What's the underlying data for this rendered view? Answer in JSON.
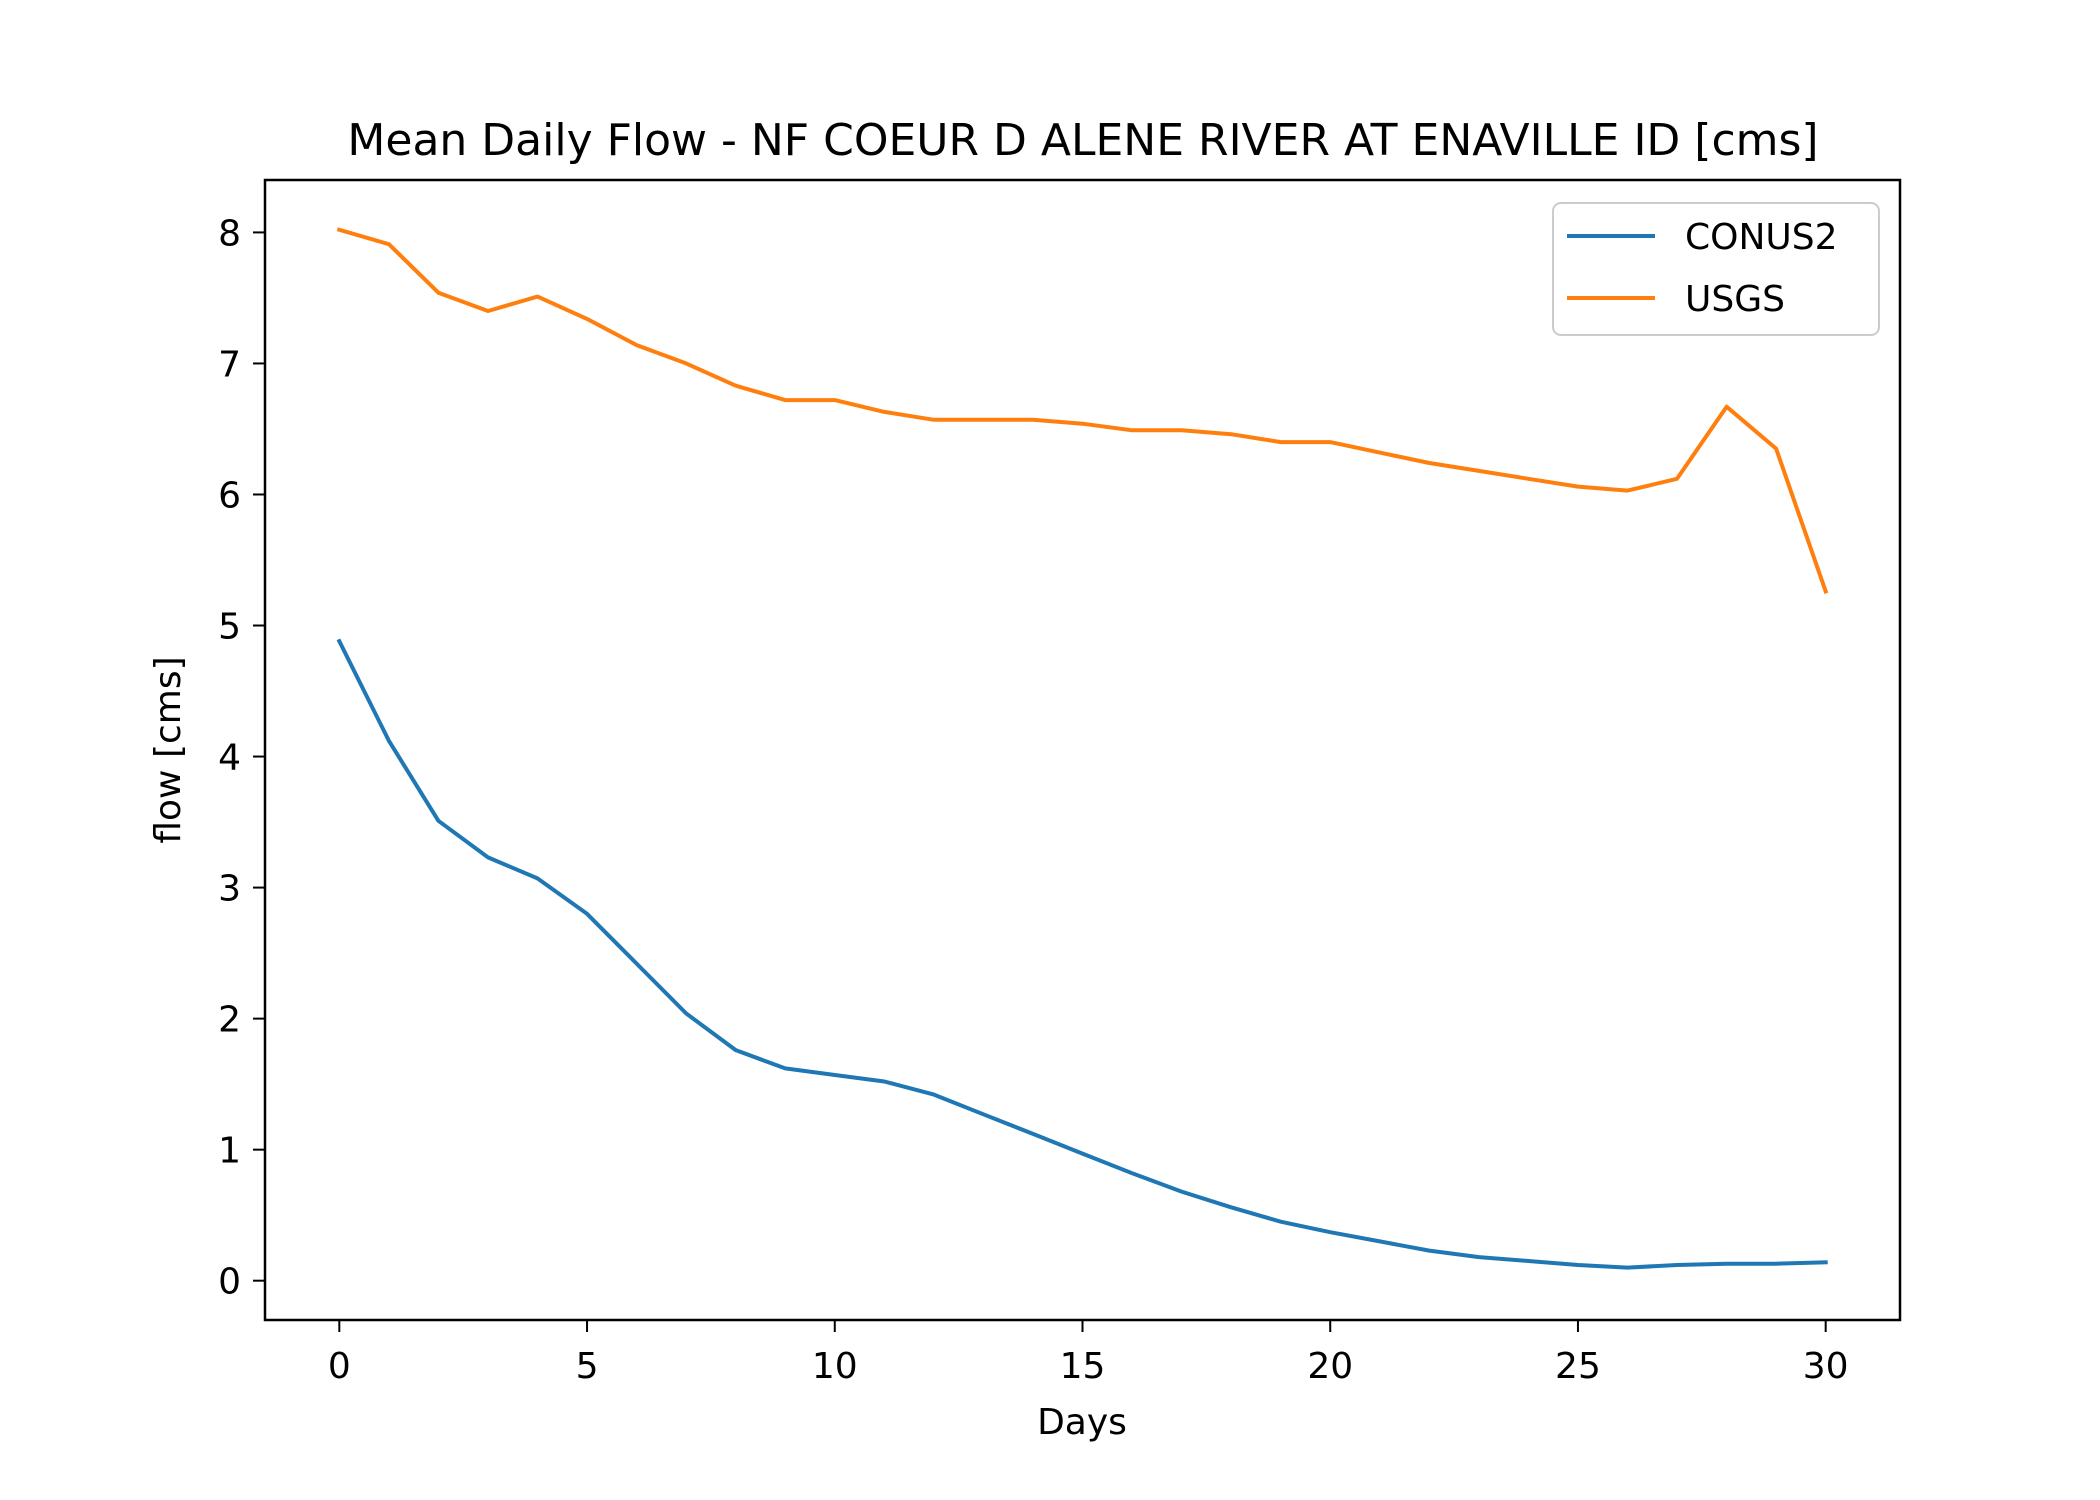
{
  "chart_data": {
    "type": "line",
    "title": "Mean Daily Flow - NF COEUR D ALENE RIVER AT ENAVILLE ID [cms]",
    "xlabel": "Days",
    "ylabel": "flow [cms]",
    "xlim": [
      -1.5,
      31.5
    ],
    "ylim": [
      -0.3,
      8.4
    ],
    "xticks": [
      0,
      5,
      10,
      15,
      20,
      25,
      30
    ],
    "yticks": [
      0,
      1,
      2,
      3,
      4,
      5,
      6,
      7,
      8
    ],
    "grid": false,
    "legend_position": "top-right",
    "x": [
      0,
      1,
      2,
      3,
      4,
      5,
      6,
      7,
      8,
      9,
      10,
      11,
      12,
      13,
      14,
      15,
      16,
      17,
      18,
      19,
      20,
      21,
      22,
      23,
      24,
      25,
      26,
      27,
      28,
      29,
      30
    ],
    "series": [
      {
        "name": "CONUS2",
        "color": "#1f77b4",
        "values": [
          4.88,
          4.12,
          3.51,
          3.23,
          3.07,
          2.8,
          2.42,
          2.04,
          1.76,
          1.62,
          1.57,
          1.52,
          1.42,
          1.27,
          1.12,
          0.97,
          0.82,
          0.68,
          0.56,
          0.45,
          0.37,
          0.3,
          0.23,
          0.18,
          0.15,
          0.12,
          0.1,
          0.12,
          0.13,
          0.13,
          0.14
        ]
      },
      {
        "name": "USGS",
        "color": "#ff7f0e",
        "values": [
          8.02,
          7.91,
          7.54,
          7.4,
          7.51,
          7.34,
          7.14,
          7.0,
          6.83,
          6.72,
          6.72,
          6.63,
          6.57,
          6.57,
          6.57,
          6.54,
          6.49,
          6.49,
          6.46,
          6.4,
          6.4,
          6.32,
          6.24,
          6.18,
          6.12,
          6.06,
          6.03,
          6.12,
          6.67,
          6.35,
          5.26
        ]
      }
    ]
  }
}
